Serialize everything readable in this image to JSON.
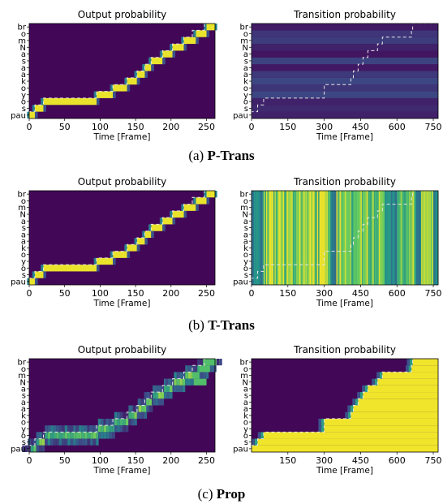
{
  "figure": {
    "colormap": [
      "#440154",
      "#3b528b",
      "#21918c",
      "#5ec962",
      "#fde725"
    ],
    "dashed_line_color": "#e6e6e6",
    "captions": [
      {
        "prefix": "(a) ",
        "bold": "P-Trans"
      },
      {
        "prefix": "(b) ",
        "bold": "T-Trans"
      },
      {
        "prefix": "(c) ",
        "bold": "Prop"
      }
    ]
  },
  "chart_data": [
    {
      "type": "heatmap",
      "panel": "a-left",
      "title": "Output probability",
      "xlabel": "Time [Frame]",
      "x_ticks": [
        0,
        50,
        100,
        150,
        200,
        250
      ],
      "xlim": [
        0,
        262
      ],
      "y_tick_labels": [
        "pau",
        "s",
        "o",
        "y",
        "o",
        "k",
        "a",
        "a",
        "s",
        "a",
        "N",
        "m",
        "o",
        "br"
      ],
      "highlight_segments": [
        [
          0,
          8
        ],
        [
          8,
          20
        ],
        [
          20,
          95
        ],
        [
          95,
          118
        ],
        [
          118,
          138
        ],
        [
          138,
          152
        ],
        [
          152,
          163
        ],
        [
          163,
          172
        ],
        [
          172,
          188
        ],
        [
          188,
          202
        ],
        [
          202,
          218
        ],
        [
          218,
          235
        ],
        [
          235,
          250
        ],
        [
          250,
          262
        ]
      ],
      "alignment_path": [
        [
          0,
          8
        ],
        [
          8,
          20
        ],
        [
          20,
          95
        ],
        [
          95,
          118
        ],
        [
          118,
          138
        ],
        [
          138,
          152
        ],
        [
          152,
          163
        ],
        [
          163,
          172
        ],
        [
          172,
          188
        ],
        [
          188,
          202
        ],
        [
          202,
          218
        ],
        [
          218,
          230
        ],
        [
          230,
          247
        ],
        [
          247,
          262
        ]
      ]
    },
    {
      "type": "heatmap",
      "panel": "a-right",
      "title": "Transition probability",
      "xlabel": "Time [Frame]",
      "x_ticks": [
        0,
        150,
        300,
        450,
        600,
        750
      ],
      "xlim": [
        0,
        770
      ],
      "y_tick_labels": [
        "pau",
        "s",
        "o",
        "y",
        "o",
        "k",
        "a",
        "a",
        "s",
        "a",
        "N",
        "m",
        "o",
        "br"
      ],
      "pattern": "row_bands",
      "alignment_path": [
        [
          0,
          25
        ],
        [
          25,
          50
        ],
        [
          50,
          300
        ],
        [
          300,
          300
        ],
        [
          300,
          410
        ],
        [
          410,
          420
        ],
        [
          420,
          440
        ],
        [
          440,
          460
        ],
        [
          460,
          480
        ],
        [
          480,
          520
        ],
        [
          520,
          540
        ],
        [
          540,
          660
        ],
        [
          660,
          665
        ],
        [
          665,
          770
        ]
      ]
    },
    {
      "type": "heatmap",
      "panel": "b-left",
      "title": "Output probability",
      "xlabel": "Time [Frame]",
      "x_ticks": [
        0,
        50,
        100,
        150,
        200,
        250
      ],
      "xlim": [
        0,
        262
      ],
      "y_tick_labels": [
        "pau",
        "s",
        "o",
        "y",
        "o",
        "k",
        "a",
        "a",
        "s",
        "a",
        "N",
        "m",
        "o",
        "br"
      ],
      "highlight_segments": [
        [
          0,
          8
        ],
        [
          8,
          20
        ],
        [
          20,
          95
        ],
        [
          95,
          118
        ],
        [
          118,
          138
        ],
        [
          138,
          152
        ],
        [
          152,
          163
        ],
        [
          163,
          172
        ],
        [
          172,
          188
        ],
        [
          188,
          202
        ],
        [
          202,
          218
        ],
        [
          218,
          235
        ],
        [
          235,
          250
        ],
        [
          250,
          262
        ]
      ],
      "alignment_path": [
        [
          0,
          8
        ],
        [
          8,
          20
        ],
        [
          20,
          95
        ],
        [
          95,
          118
        ],
        [
          118,
          138
        ],
        [
          138,
          152
        ],
        [
          152,
          163
        ],
        [
          163,
          172
        ],
        [
          172,
          188
        ],
        [
          188,
          202
        ],
        [
          202,
          218
        ],
        [
          218,
          230
        ],
        [
          230,
          247
        ],
        [
          247,
          262
        ]
      ]
    },
    {
      "type": "heatmap",
      "panel": "b-right",
      "title": "Transition probability",
      "xlabel": "Time [Frame]",
      "x_ticks": [
        0,
        150,
        300,
        450,
        600,
        750
      ],
      "xlim": [
        0,
        770
      ],
      "y_tick_labels": [
        "pau",
        "s",
        "o",
        "y",
        "o",
        "k",
        "a",
        "a",
        "s",
        "a",
        "N",
        "m",
        "o",
        "br"
      ],
      "pattern": "column_stripes",
      "alignment_path": [
        [
          0,
          25
        ],
        [
          25,
          50
        ],
        [
          50,
          300
        ],
        [
          300,
          300
        ],
        [
          300,
          410
        ],
        [
          410,
          420
        ],
        [
          420,
          440
        ],
        [
          440,
          460
        ],
        [
          460,
          480
        ],
        [
          480,
          520
        ],
        [
          520,
          540
        ],
        [
          540,
          660
        ],
        [
          660,
          665
        ],
        [
          665,
          770
        ]
      ]
    },
    {
      "type": "heatmap",
      "panel": "c-left",
      "title": "Output probability",
      "xlabel": "Time [Frame]",
      "x_ticks": [
        0,
        50,
        100,
        150,
        200,
        250
      ],
      "xlim": [
        0,
        262
      ],
      "y_tick_labels": [
        "pau",
        "s",
        "o",
        "y",
        "o",
        "k",
        "a",
        "a",
        "s",
        "a",
        "N",
        "m",
        "o",
        "br"
      ],
      "pattern": "diffuse",
      "highlight_segments": [
        [
          0,
          8
        ],
        [
          8,
          20
        ],
        [
          20,
          95
        ],
        [
          95,
          118
        ],
        [
          118,
          138
        ],
        [
          138,
          152
        ],
        [
          152,
          163
        ],
        [
          163,
          172
        ],
        [
          172,
          188
        ],
        [
          188,
          202
        ],
        [
          202,
          218
        ],
        [
          218,
          235
        ],
        [
          235,
          250
        ],
        [
          250,
          262
        ]
      ],
      "alignment_path": [
        [
          0,
          8
        ],
        [
          8,
          20
        ],
        [
          20,
          95
        ],
        [
          95,
          118
        ],
        [
          118,
          138
        ],
        [
          138,
          152
        ],
        [
          152,
          163
        ],
        [
          163,
          172
        ],
        [
          172,
          188
        ],
        [
          188,
          202
        ],
        [
          202,
          218
        ],
        [
          218,
          230
        ],
        [
          230,
          247
        ],
        [
          247,
          262
        ]
      ]
    },
    {
      "type": "heatmap",
      "panel": "c-right",
      "title": "Transition probability",
      "xlabel": "Time [Frame]",
      "x_ticks": [
        150,
        300,
        450,
        600,
        750
      ],
      "xlim": [
        0,
        770
      ],
      "y_tick_labels": [
        "pau",
        "s",
        "o",
        "y",
        "o",
        "k",
        "a",
        "a",
        "s",
        "a",
        "N",
        "m",
        "o",
        "br"
      ],
      "pattern": "staircase_fill",
      "alignment_path": [
        [
          0,
          25
        ],
        [
          25,
          50
        ],
        [
          50,
          300
        ],
        [
          300,
          300
        ],
        [
          300,
          410
        ],
        [
          410,
          420
        ],
        [
          420,
          440
        ],
        [
          440,
          460
        ],
        [
          460,
          480
        ],
        [
          480,
          520
        ],
        [
          520,
          540
        ],
        [
          540,
          660
        ],
        [
          660,
          665
        ],
        [
          665,
          770
        ]
      ]
    }
  ]
}
